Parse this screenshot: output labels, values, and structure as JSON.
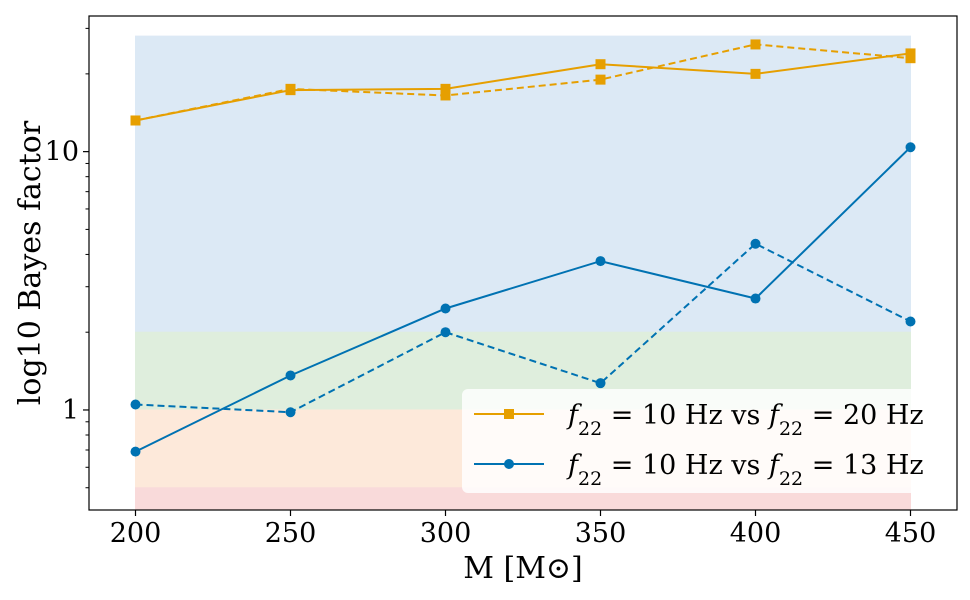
{
  "chart_data": {
    "type": "line",
    "title": "",
    "xlabel": "M [M⊙]",
    "ylabel": "log10 Bayes factor",
    "x": [
      200,
      250,
      300,
      350,
      400,
      450
    ],
    "xlim": [
      185,
      465
    ],
    "ylim": [
      0.41,
      33.5
    ],
    "yscale": "log",
    "x_ticks": [
      "200",
      "250",
      "300",
      "350",
      "400",
      "450"
    ],
    "y_ticks": [
      "1",
      "10"
    ],
    "grid": false,
    "legend_position": "lower-right",
    "bands": [
      {
        "name": "blue-band",
        "from": 2,
        "to": 28,
        "color": "#dce9f5"
      },
      {
        "name": "green-band",
        "from": 1,
        "to": 2,
        "color": "#dfeedd"
      },
      {
        "name": "orange-band",
        "from": 0.5,
        "to": 1,
        "color": "#fde9da"
      },
      {
        "name": "red-band",
        "from": 0.41,
        "to": 0.5,
        "color": "#f9dada"
      }
    ],
    "series": [
      {
        "name": "f22 = 10 Hz vs f22 = 20 Hz",
        "legend": [
          "f",
          "22",
          " = 10 Hz vs ",
          "f",
          "22",
          " = 20 Hz"
        ],
        "color": "#e69f00",
        "marker": "square",
        "linestyle": "solid",
        "values": [
          13.2,
          17.3,
          17.5,
          21.8,
          20.0,
          24.0
        ]
      },
      {
        "name": "f22 = 10 Hz vs f22 = 20 Hz (dashed)",
        "color": "#e69f00",
        "marker": "square",
        "linestyle": "dashed",
        "values": [
          13.2,
          17.5,
          16.5,
          19.0,
          26.0,
          23.0
        ]
      },
      {
        "name": "f22 = 10 Hz vs f22 = 13 Hz",
        "legend": [
          "f",
          "22",
          " = 10 Hz vs ",
          "f",
          "22",
          " = 13 Hz"
        ],
        "color": "#0072b2",
        "marker": "circle",
        "linestyle": "solid",
        "values": [
          0.69,
          1.36,
          2.47,
          3.77,
          2.7,
          10.4
        ]
      },
      {
        "name": "f22 = 10 Hz vs f22 = 13 Hz (dashed)",
        "color": "#0072b2",
        "marker": "circle",
        "linestyle": "dashed",
        "values": [
          1.05,
          0.98,
          2.0,
          1.27,
          4.4,
          2.2
        ]
      }
    ]
  }
}
